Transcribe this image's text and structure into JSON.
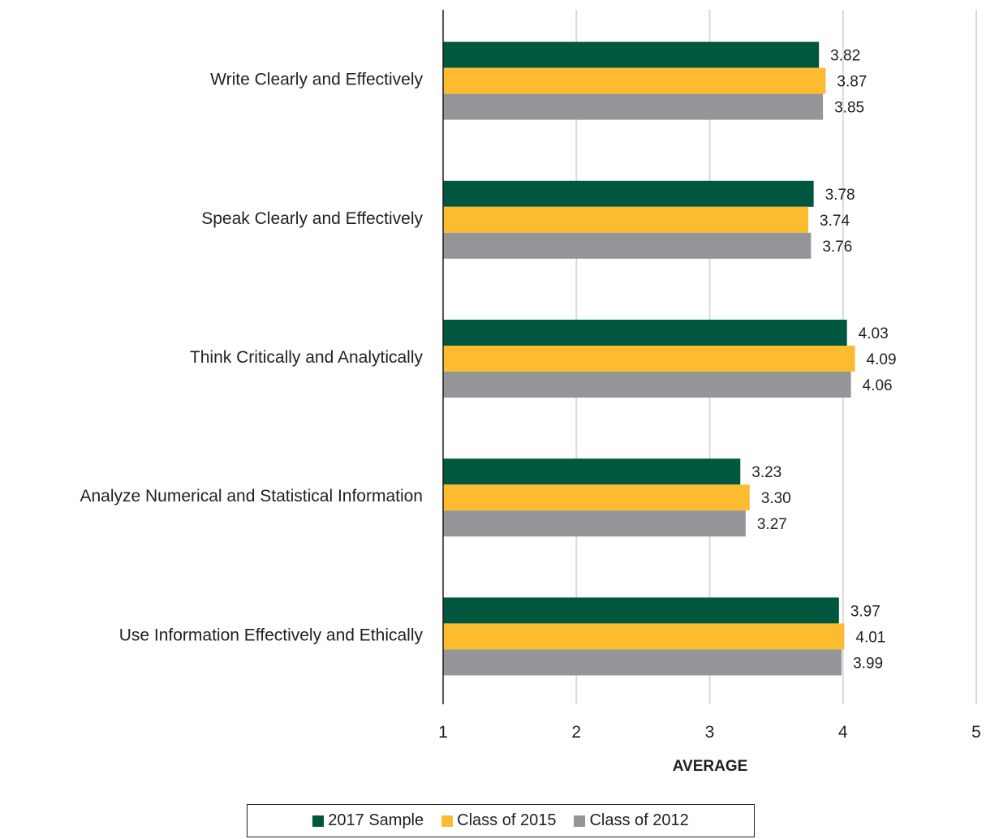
{
  "chart_data": {
    "type": "bar",
    "orientation": "horizontal",
    "categories": [
      "Write Clearly and Effectively",
      "Speak Clearly and Effectively",
      "Think Critically and Analytically",
      "Analyze Numerical and Statistical Information",
      "Use Information Effectively and Ethically"
    ],
    "series": [
      {
        "name": "2017 Sample",
        "color": "#00573f",
        "values": [
          3.82,
          3.78,
          4.03,
          3.23,
          3.97
        ],
        "labels": [
          "3.82",
          "3.78",
          "4.03",
          "3.23",
          "3.97"
        ]
      },
      {
        "name": "Class of 2015",
        "color": "#fdbb30",
        "values": [
          3.87,
          3.74,
          4.09,
          3.3,
          4.01
        ],
        "labels": [
          "3.87",
          "3.74",
          "4.09",
          "3.30",
          "4.01"
        ]
      },
      {
        "name": "Class of 2012",
        "color": "#939598",
        "values": [
          3.85,
          3.76,
          4.06,
          3.27,
          3.99
        ],
        "labels": [
          "3.85",
          "3.76",
          "4.06",
          "3.27",
          "3.99"
        ]
      }
    ],
    "xlabel": "AVERAGE",
    "xlim": [
      1,
      5
    ],
    "xticks": [
      "1",
      "2",
      "3",
      "4",
      "5"
    ],
    "grid": true,
    "legend_position": "bottom"
  }
}
